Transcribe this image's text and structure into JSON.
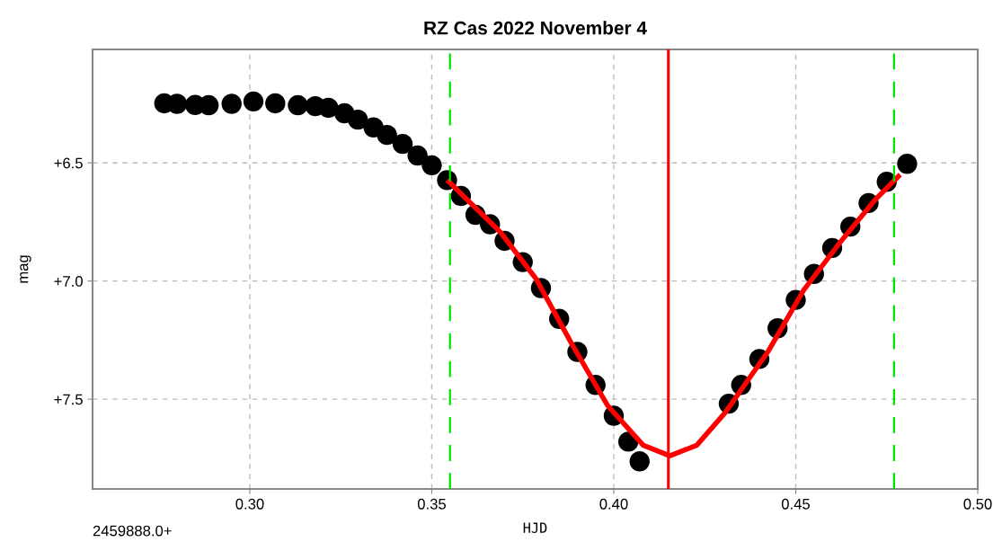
{
  "chart_data": {
    "type": "scatter",
    "title": "RZ Cas 2022 November 4",
    "xlabel": "HJD",
    "ylabel": "mag",
    "annotations": [
      "2459888.0+"
    ],
    "xlim": [
      0.2568,
      0.5
    ],
    "ylim": [
      7.88,
      6.02
    ],
    "xticks": [
      {
        "value": 0.3,
        "label": "0.30"
      },
      {
        "value": 0.35,
        "label": "0.35"
      },
      {
        "value": 0.4,
        "label": "0.40"
      },
      {
        "value": 0.45,
        "label": "0.45"
      },
      {
        "value": 0.5,
        "label": "0.50"
      }
    ],
    "yticks": [
      {
        "value": 6.5,
        "label": "+6.5"
      },
      {
        "value": 7.0,
        "label": "+7.0"
      },
      {
        "value": 7.5,
        "label": "+7.5"
      }
    ],
    "grid": true,
    "series": [
      {
        "marker": "circle",
        "color": "#000000",
        "x": [
          0.2765,
          0.28,
          0.285,
          0.2887,
          0.295,
          0.301,
          0.307,
          0.3132,
          0.318,
          0.3216,
          0.326,
          0.3297,
          0.334,
          0.3377,
          0.342,
          0.3461,
          0.35,
          0.3542,
          0.358,
          0.362,
          0.366,
          0.37,
          0.375,
          0.38,
          0.385,
          0.39,
          0.395,
          0.4,
          0.404,
          0.4071,
          0.4316,
          0.435,
          0.44,
          0.445,
          0.45,
          0.455,
          0.46,
          0.465,
          0.47,
          0.475,
          0.4806
        ],
        "values": [
          6.248,
          6.25,
          6.255,
          6.256,
          6.25,
          6.24,
          6.248,
          6.256,
          6.26,
          6.267,
          6.29,
          6.317,
          6.35,
          6.382,
          6.42,
          6.469,
          6.51,
          6.573,
          6.64,
          6.72,
          6.76,
          6.83,
          6.92,
          7.03,
          7.16,
          7.3,
          7.44,
          7.57,
          7.68,
          7.763,
          7.519,
          7.44,
          7.33,
          7.2,
          7.08,
          6.97,
          6.86,
          6.77,
          6.67,
          6.58,
          6.504
        ]
      },
      {
        "type": "line",
        "color": "#ff0000",
        "marker": "none",
        "x": [
          0.3547,
          0.3689,
          0.3787,
          0.3885,
          0.3983,
          0.4081,
          0.4154,
          0.4228,
          0.4306,
          0.4424,
          0.4522,
          0.462,
          0.4718,
          0.4782
        ],
        "values": [
          6.58,
          6.794,
          6.992,
          7.267,
          7.527,
          7.695,
          7.74,
          7.695,
          7.557,
          7.298,
          7.038,
          6.84,
          6.656,
          6.557
        ]
      }
    ],
    "ref_lines": [
      {
        "axis": "x",
        "value": 0.355,
        "color": "#00e000",
        "line_style": "dashed"
      },
      {
        "axis": "x",
        "value": 0.415,
        "color": "#ff0000",
        "line_style": "solid"
      },
      {
        "axis": "x",
        "value": 0.477,
        "color": "#00e000",
        "line_style": "dashed"
      }
    ]
  }
}
